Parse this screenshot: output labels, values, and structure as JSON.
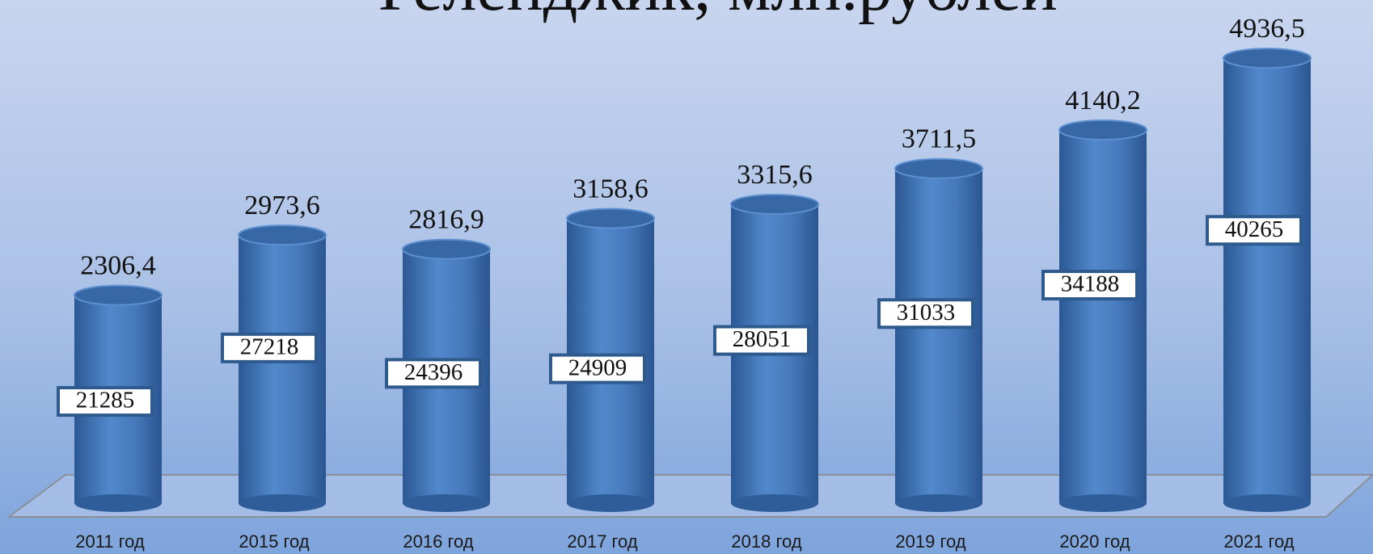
{
  "chart_data": {
    "type": "bar3d",
    "title": "Геленджик, млн.рублей",
    "categories": [
      "2011 год",
      "2015 год",
      "2016 год",
      "2017 год",
      "2018 год",
      "2019 год",
      "2020 год",
      "2021 год"
    ],
    "series": [
      {
        "color": "#4479bd",
        "values": [
          2306.4,
          2973.6,
          2816.9,
          3158.6,
          3315.6,
          3711.5,
          4140.2,
          4936.5
        ],
        "value_labels": [
          "2306,4",
          "2973,6",
          "2816,9",
          "3158,6",
          "3315,6",
          "3711,5",
          "4140,2",
          "4936,5"
        ]
      },
      {
        "color": "#2e5a8e",
        "axis": "y2",
        "values": [
          21285,
          27218,
          24396,
          24909,
          28051,
          31033,
          34188,
          40265
        ]
      }
    ],
    "ylim": [
      0,
      5000
    ],
    "y2lim": [
      10000,
      60000
    ]
  }
}
